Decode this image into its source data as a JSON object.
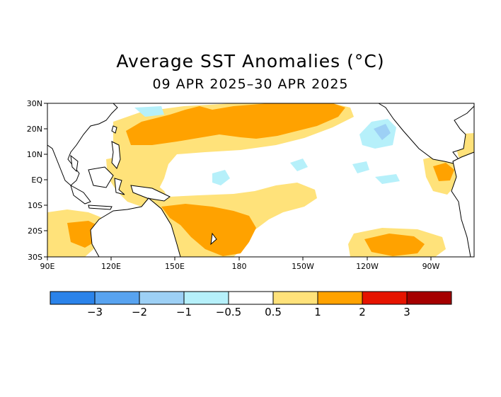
{
  "title": "Average SST Anomalies (°C)",
  "subtitle": "09 APR 2025–30 APR 2025",
  "lat_labels": [
    "30N",
    "20N",
    "10N",
    "EQ",
    "10S",
    "20S",
    "30S"
  ],
  "lon_labels": [
    "90E",
    "120E",
    "150E",
    "180",
    "150W",
    "120W",
    "90W"
  ],
  "colorbar": {
    "labels": [
      "−3",
      "−2",
      "−1",
      "−0.5",
      "0.5",
      "1",
      "2",
      "3"
    ],
    "colors": [
      "#2b83ea",
      "#58a3f0",
      "#9dd0f5",
      "#b6f0fa",
      "#ffffff",
      "#ffe27a",
      "#ffa200",
      "#e61400",
      "#a50000"
    ]
  },
  "palette": {
    "ocean": "#ffffff",
    "warm1": "#ffe27a",
    "warm2": "#ffa200",
    "cool1": "#b6f0fa",
    "cool2": "#9dd0f5",
    "coast": "#000000"
  }
}
